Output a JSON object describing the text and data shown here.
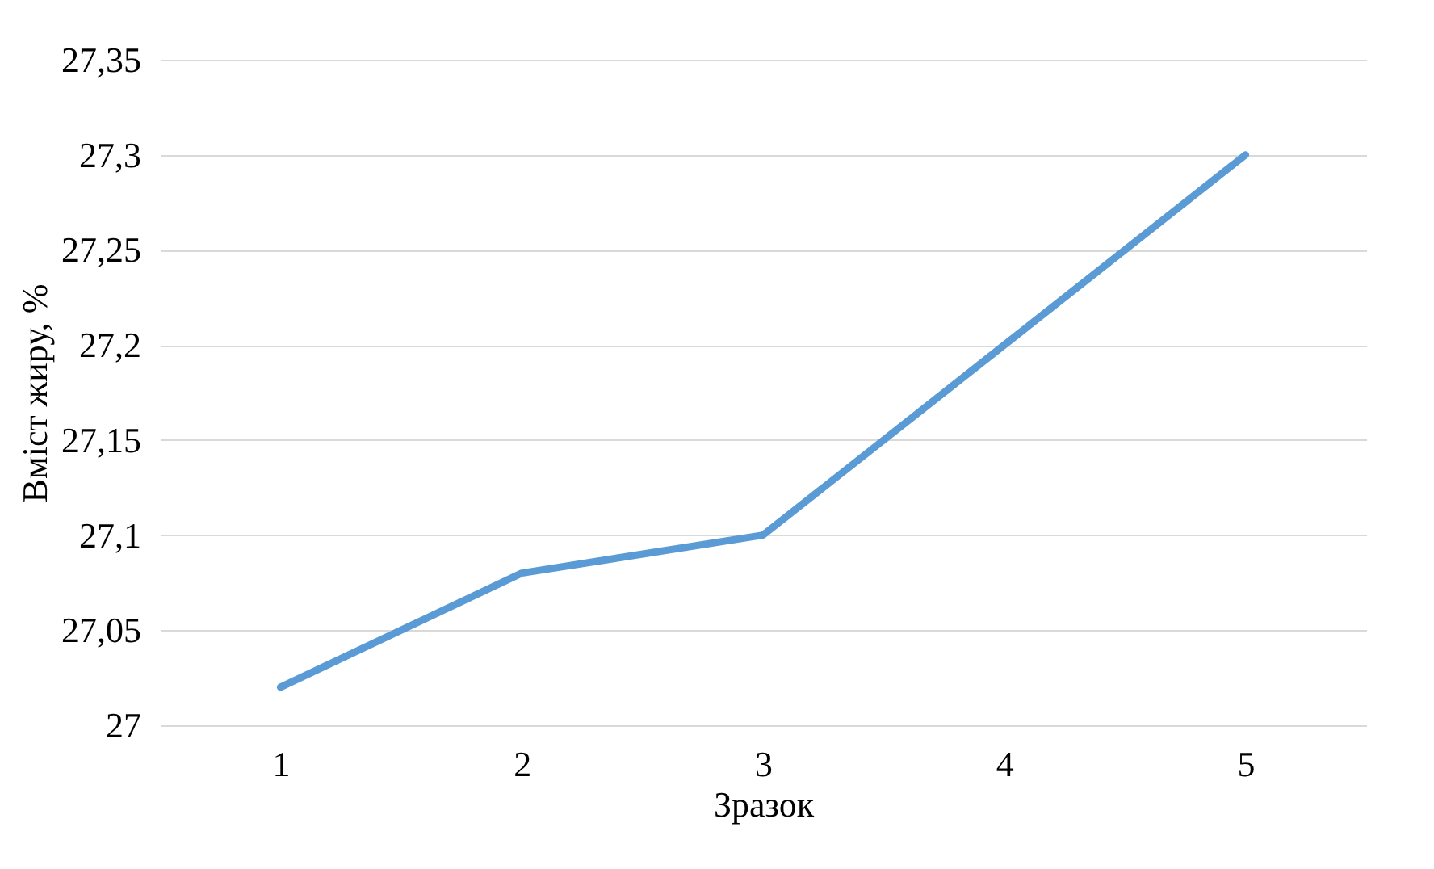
{
  "chart_data": {
    "type": "line",
    "xlabel": "Зразок",
    "ylabel": "Вміст жиру, %",
    "categories": [
      "1",
      "2",
      "3",
      "4",
      "5"
    ],
    "series": [
      {
        "color": "#5b9bd5",
        "values": [
          27.02,
          27.08,
          27.1,
          27.2,
          27.3
        ]
      }
    ],
    "ylim": [
      27,
      27.35
    ],
    "yticks": [
      {
        "value": 27,
        "label": "27"
      },
      {
        "value": 27.05,
        "label": "27,05"
      },
      {
        "value": 27.1,
        "label": "27,1"
      },
      {
        "value": 27.15,
        "label": "27,15"
      },
      {
        "value": 27.2,
        "label": "27,2"
      },
      {
        "value": 27.25,
        "label": "27,25"
      },
      {
        "value": 27.3,
        "label": "27,3"
      },
      {
        "value": 27.35,
        "label": "27,35"
      }
    ],
    "grid": "y",
    "marker": "none",
    "line_style": "solid"
  }
}
